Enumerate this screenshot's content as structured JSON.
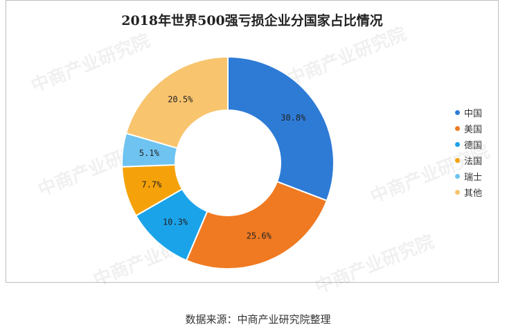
{
  "chart_data": {
    "type": "pie",
    "title": "2018年世界500强亏损企业分国家占比情况",
    "unit": "%",
    "slices": [
      {
        "label": "中国",
        "value": 30.8,
        "display": "30.8%",
        "color": "#2e7bd6"
      },
      {
        "label": "美国",
        "value": 25.6,
        "display": "25.6%",
        "color": "#f07a22"
      },
      {
        "label": "德国",
        "value": 10.3,
        "display": "10.3%",
        "color": "#1ba3ea"
      },
      {
        "label": "法国",
        "value": 7.7,
        "display": "7.7%",
        "color": "#f5a20a"
      },
      {
        "label": "瑞士",
        "value": 5.1,
        "display": "5.1%",
        "color": "#6ec3f0"
      },
      {
        "label": "其他",
        "value": 20.5,
        "display": "20.5%",
        "color": "#f8c46e"
      }
    ],
    "legend_position": "right"
  },
  "source": "数据来源：中商产业研究院整理",
  "watermark": "中商产业研究院"
}
